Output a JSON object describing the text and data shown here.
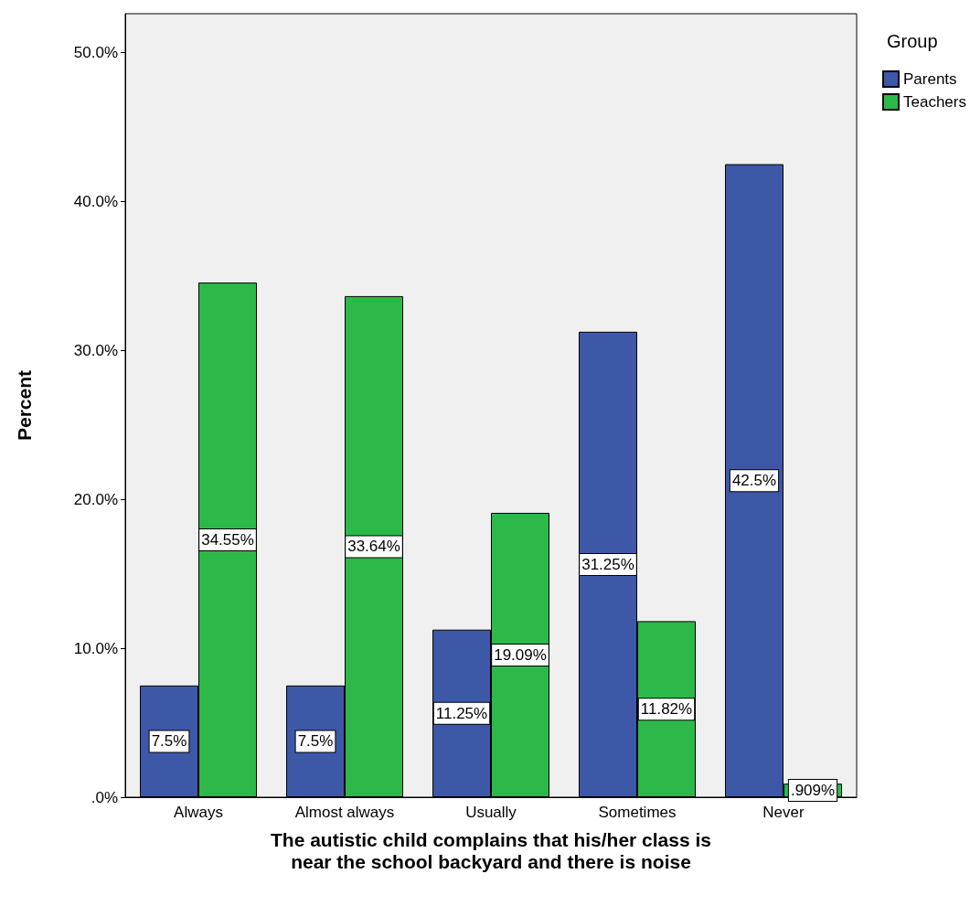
{
  "chart_data": {
    "type": "bar",
    "xlabel": "The autistic child complains that his/her class is\nnear the school backyard and there is noise",
    "ylabel": "Percent",
    "legend_title": "Group",
    "legend": "top right",
    "categories": [
      "Always",
      "Almost always",
      "Usually",
      "Sometimes",
      "Never"
    ],
    "series": [
      {
        "name": "Parents",
        "color": "#3e58a8",
        "values": [
          7.5,
          7.5,
          11.25,
          31.25,
          42.5
        ],
        "value_labels": [
          "7.5%",
          "7.5%",
          "11.25%",
          "31.25%",
          "42.5%"
        ]
      },
      {
        "name": "Teachers",
        "color": "#2db84a",
        "values": [
          34.55,
          33.64,
          19.09,
          11.82,
          0.909
        ],
        "value_labels": [
          "34.55%",
          "33.64%",
          "19.09%",
          "11.82%",
          ".909%"
        ]
      }
    ],
    "ylim": [
      0,
      52.6
    ],
    "yticks": [
      {
        "value": 0,
        "label": ".0%"
      },
      {
        "value": 10,
        "label": "10.0%"
      },
      {
        "value": 20,
        "label": "20.0%"
      },
      {
        "value": 30,
        "label": "30.0%"
      },
      {
        "value": 40,
        "label": "40.0%"
      },
      {
        "value": 50,
        "label": "50.0%"
      }
    ],
    "grid": false
  }
}
